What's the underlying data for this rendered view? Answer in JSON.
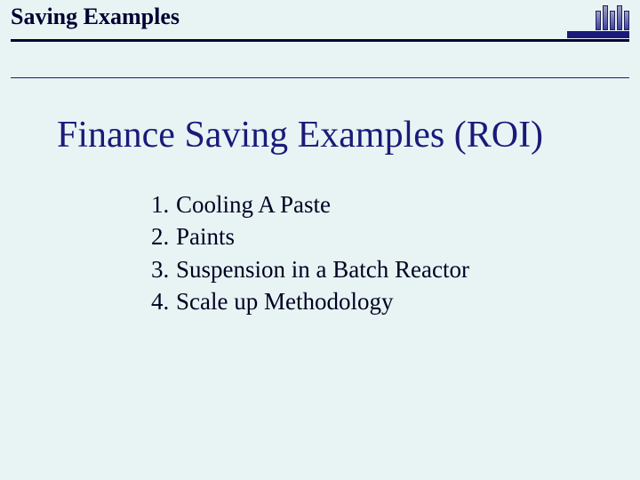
{
  "colors": {
    "background": "#e8f4f4",
    "header_text": "#000033",
    "title_text": "#1a1a7a",
    "body_text": "#000022",
    "rule_thick": "#000033",
    "rule_thin": "#1a1a7a",
    "logo_caption_bg": "#1a1a7a"
  },
  "typography": {
    "header_title_fontsize": 26,
    "main_title_fontsize": 42,
    "list_fontsize": 27,
    "font_family": "Times New Roman"
  },
  "header": {
    "title": "Saving Examples"
  },
  "main": {
    "title": "Finance Saving Examples (ROI)"
  },
  "list_items": [
    {
      "num": "1.",
      "text": "Cooling A Paste"
    },
    {
      "num": "2.",
      "text": "Paints"
    },
    {
      "num": "3.",
      "text": "Suspension in a Batch Reactor"
    },
    {
      "num": "4.",
      "text": "Scale up Methodology"
    }
  ]
}
